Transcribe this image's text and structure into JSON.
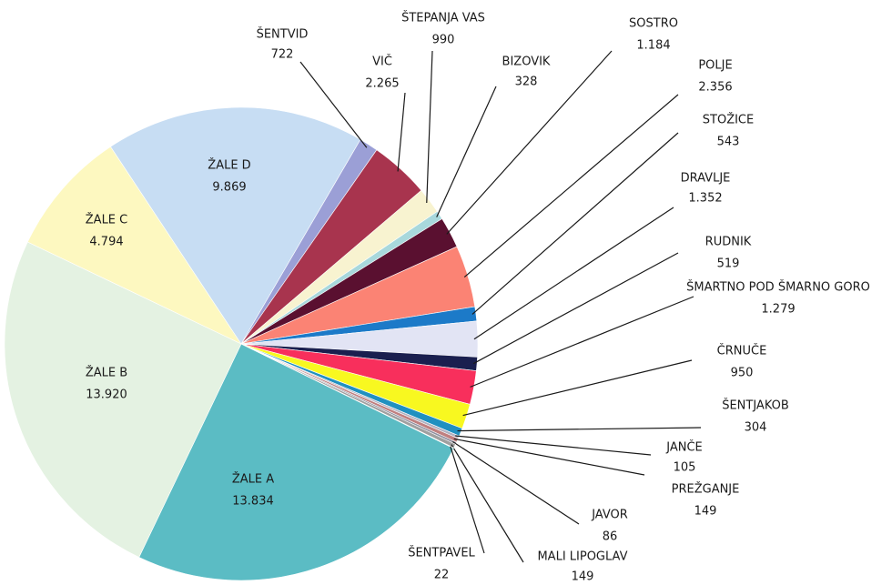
{
  "chart_data": {
    "type": "pie",
    "categories": [
      "ŽALE A",
      "ŽALE B",
      "ŽALE C",
      "ŽALE D",
      "ŠENTVID",
      "VIČ",
      "ŠTEPANJA VAS",
      "BIZOVIK",
      "SOSTRO",
      "POLJE",
      "STOŽICE",
      "DRAVLJE",
      "RUDNIK",
      "ŠMARTNO POD ŠMARNO GORO",
      "ČRNUČE",
      "ŠENTJAKOB",
      "JANČE",
      "PREŽGANJE",
      "JAVOR",
      "MALI LIPOGLAV",
      "ŠENTPAVEL"
    ],
    "values": [
      13834,
      13920,
      4794,
      9869,
      722,
      2265,
      990,
      328,
      1184,
      2356,
      543,
      1352,
      519,
      1279,
      950,
      304,
      105,
      149,
      86,
      149,
      22
    ],
    "value_labels": [
      "13.834",
      "13.920",
      "4.794",
      "9.869",
      "722",
      "2.265",
      "990",
      "328",
      "1.184",
      "2.356",
      "543",
      "1.352",
      "519",
      "1.279",
      "950",
      "304",
      "105",
      "149",
      "86",
      "149",
      "22"
    ],
    "colors": [
      "#5bbcc4",
      "#e4f2e2",
      "#fdf8c0",
      "#c7ddf3",
      "#9b9fd6",
      "#a8344e",
      "#f8f3d0",
      "#a8d8dc",
      "#5a1030",
      "#fb8374",
      "#1c7ac8",
      "#e2e4f4",
      "#1a1f4f",
      "#f82f5c",
      "#f8f820",
      "#2090c0",
      "#b0b0c0",
      "#c08080",
      "#9090a0",
      "#a0a0a0",
      "#c0c0c0"
    ]
  }
}
